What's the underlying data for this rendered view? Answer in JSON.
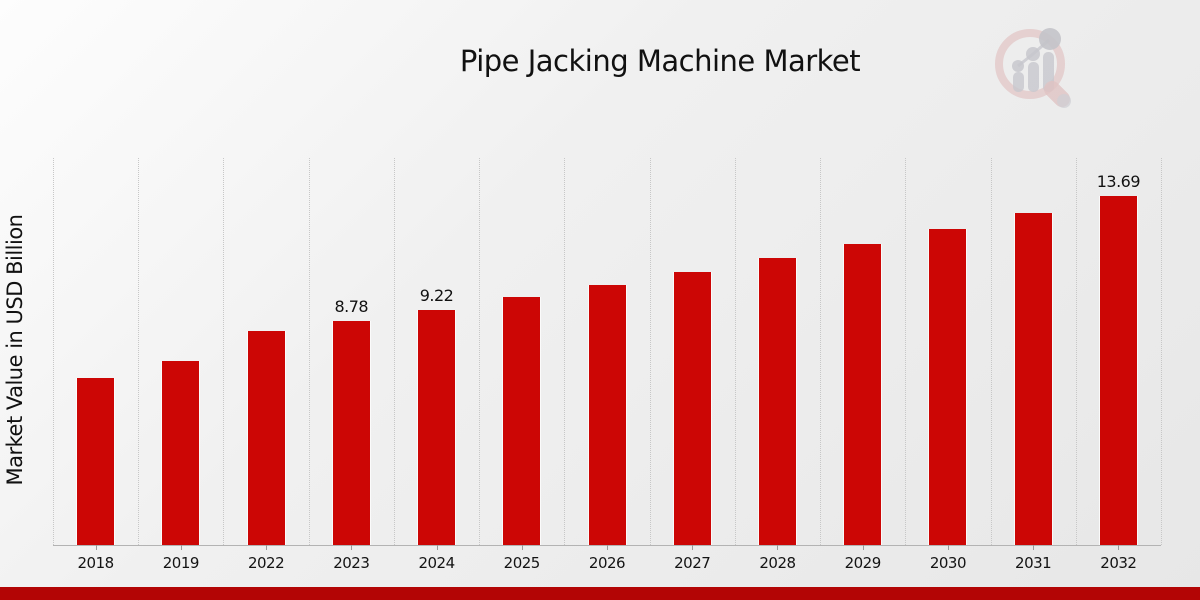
{
  "page": {
    "title": "Pipe Jacking Machine Market"
  },
  "brand": {
    "logo_icon": "magnifier-bar-chart-watermark",
    "accent_red": "#cc0605",
    "footer_red": "#b30505"
  },
  "chart_data": {
    "type": "bar",
    "title": "Pipe Jacking Machine Market",
    "xlabel": "",
    "ylabel": "Market Value in USD Billion",
    "categories": [
      "2018",
      "2019",
      "2022",
      "2023",
      "2024",
      "2025",
      "2026",
      "2027",
      "2028",
      "2029",
      "2030",
      "2031",
      "2032"
    ],
    "values": [
      6.54,
      7.23,
      8.4,
      8.78,
      9.22,
      9.74,
      10.23,
      10.74,
      11.27,
      11.84,
      12.43,
      13.05,
      13.69
    ],
    "data_labels": [
      "",
      "",
      "",
      "8.78",
      "9.22",
      "",
      "",
      "",
      "",
      "",
      "",
      "",
      "13.69"
    ],
    "bar_color": "#cc0605",
    "ylim": [
      0,
      15.2
    ],
    "grid": "vertical-dotted-category-boundaries",
    "legend": "none",
    "y_tick_labels_shown": false
  }
}
